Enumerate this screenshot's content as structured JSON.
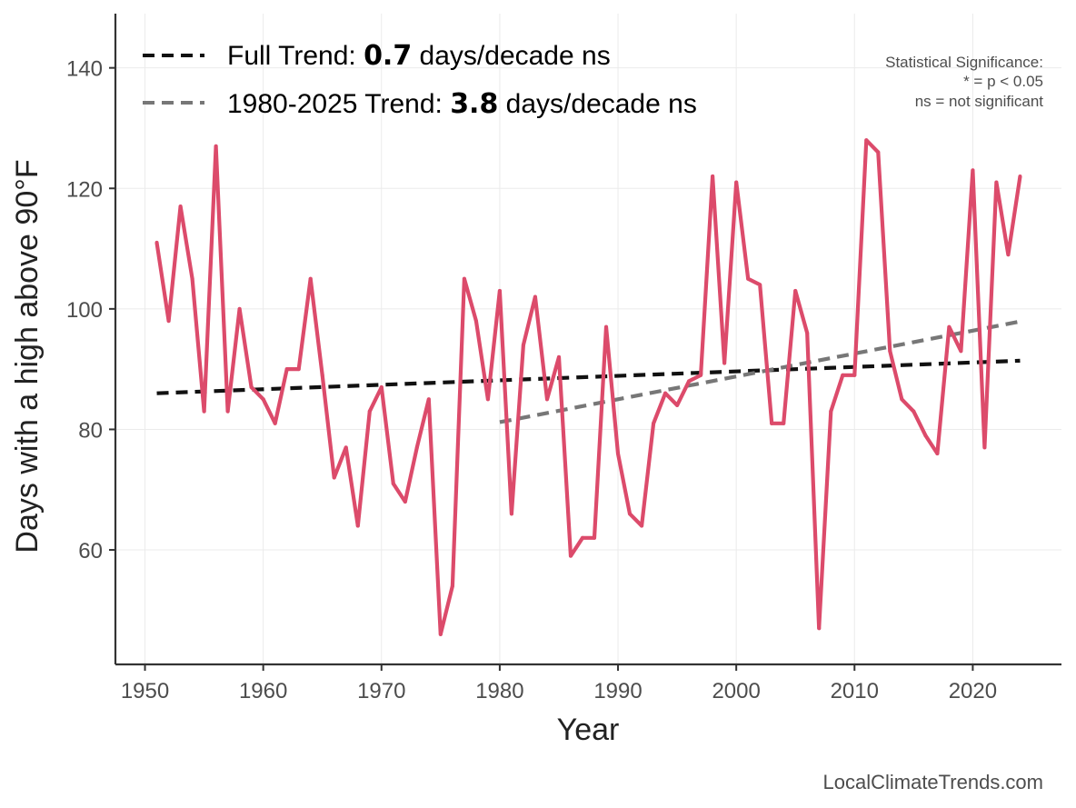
{
  "chart_data": {
    "type": "line",
    "xlabel": "Year",
    "ylabel": "Days with a high above 90°F",
    "xlim": [
      1947.5,
      2027.5
    ],
    "ylim": [
      41,
      149
    ],
    "x_ticks": [
      1950,
      1960,
      1970,
      1980,
      1990,
      2000,
      2010,
      2020
    ],
    "x_tick_labels": [
      "1950",
      "1960",
      "1970",
      "1980",
      "1990",
      "2000",
      "2010",
      "2020"
    ],
    "y_ticks": [
      60,
      80,
      100,
      120,
      140
    ],
    "y_tick_labels": [
      "60",
      "80",
      "100",
      "120",
      "140"
    ],
    "grid": true,
    "series": [
      {
        "name": "Annual days above 90°F",
        "color": "#dc4b6b",
        "x": [
          1951,
          1952,
          1953,
          1954,
          1955,
          1956,
          1957,
          1958,
          1959,
          1960,
          1961,
          1962,
          1963,
          1964,
          1965,
          1966,
          1967,
          1968,
          1969,
          1970,
          1971,
          1972,
          1973,
          1974,
          1975,
          1976,
          1977,
          1978,
          1979,
          1980,
          1981,
          1982,
          1983,
          1984,
          1985,
          1986,
          1987,
          1988,
          1989,
          1990,
          1991,
          1992,
          1993,
          1994,
          1995,
          1996,
          1997,
          1998,
          1999,
          2000,
          2001,
          2002,
          2003,
          2004,
          2005,
          2006,
          2007,
          2008,
          2009,
          2010,
          2011,
          2012,
          2013,
          2014,
          2015,
          2016,
          2017,
          2018,
          2019,
          2020,
          2021,
          2022,
          2023,
          2024
        ],
        "values": [
          111,
          98,
          117,
          105,
          83,
          127,
          83,
          100,
          87,
          85,
          81,
          90,
          90,
          105,
          89,
          72,
          77,
          64,
          83,
          87,
          71,
          68,
          77,
          85,
          46,
          54,
          105,
          98,
          85,
          103,
          66,
          94,
          102,
          85,
          92,
          59,
          62,
          62,
          97,
          76,
          66,
          64,
          81,
          86,
          84,
          88,
          89,
          122,
          91,
          121,
          105,
          104,
          81,
          81,
          103,
          96,
          47,
          83,
          89,
          89,
          128,
          126,
          93,
          85,
          83,
          79,
          76,
          97,
          93,
          123,
          77,
          121,
          109,
          122
        ]
      }
    ],
    "trends": [
      {
        "name": "Full Trend",
        "color": "#111111",
        "dash": "dashed",
        "x": [
          1951,
          2024
        ],
        "values": [
          86.0,
          91.4
        ]
      },
      {
        "name": "1980-2025 Trend",
        "color": "#777777",
        "dash": "dashed",
        "x": [
          1980,
          2024
        ],
        "values": [
          81.2,
          97.9
        ]
      }
    ],
    "legend": {
      "position": "top-left",
      "items": [
        {
          "prefix": "Full Trend: ",
          "value": "0.7",
          "suffix": " days/decade ns",
          "color": "#111111"
        },
        {
          "prefix": "1980-2025 Trend: ",
          "value": "3.8",
          "suffix": " days/decade ns",
          "color": "#777777"
        }
      ]
    },
    "annotation": {
      "position": "top-right",
      "lines": [
        "Statistical Significance:",
        "* = p < 0.05",
        "ns = not significant"
      ]
    },
    "source": "LocalClimateTrends.com"
  }
}
